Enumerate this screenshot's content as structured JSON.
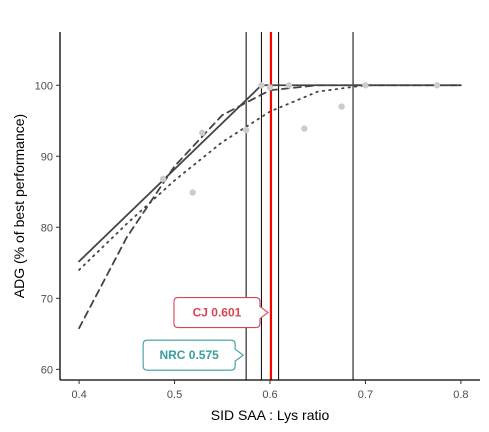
{
  "chart_data": {
    "type": "scatter",
    "title": "",
    "xlabel": "SID SAA : Lys ratio",
    "ylabel": "ADG (% of best performance)",
    "xlim": [
      0.38,
      0.82
    ],
    "ylim": [
      58.5,
      107.5
    ],
    "x_ticks": [
      0.4,
      0.5,
      0.6,
      0.7,
      0.8
    ],
    "y_ticks": [
      60,
      70,
      80,
      90,
      100
    ],
    "x_tick_labels": [
      "0.4",
      "0.5",
      "0.6",
      "0.7",
      "0.8"
    ],
    "y_tick_labels": [
      "60",
      "70",
      "80",
      "90",
      "100"
    ],
    "grid": false,
    "points": {
      "color": "#cccccc",
      "x": [
        0.488,
        0.519,
        0.529,
        0.575,
        0.591,
        0.6,
        0.62,
        0.636,
        0.675,
        0.7,
        0.775
      ],
      "y": [
        86.8,
        84.9,
        93.3,
        93.7,
        100.0,
        99.7,
        100.0,
        93.9,
        97.0,
        100.0,
        100.0
      ]
    },
    "broken_line_linear": {
      "style": "solid",
      "color": "#444444",
      "x": [
        0.4,
        0.591,
        0.8
      ],
      "y": [
        75.2,
        100.0,
        100.0
      ]
    },
    "broken_line_quadratic": {
      "style": "dashed",
      "color": "#444444",
      "x": [
        0.4,
        0.45,
        0.5,
        0.55,
        0.6,
        0.65,
        0.8
      ],
      "y": [
        65.8,
        78.6,
        88.6,
        95.8,
        99.3,
        100.0,
        100.0
      ]
    },
    "curvilinear_plateau": {
      "style": "dotted",
      "color": "#444444",
      "x": [
        0.4,
        0.45,
        0.5,
        0.55,
        0.6,
        0.65,
        0.7,
        0.8
      ],
      "y": [
        74.0,
        80.5,
        86.6,
        92.0,
        96.3,
        99.1,
        100.0,
        100.0
      ]
    },
    "reference_lines": [
      {
        "x": 0.575,
        "color": "#000000"
      },
      {
        "x": 0.591,
        "color": "#000000"
      },
      {
        "x": 0.609,
        "color": "#000000"
      },
      {
        "x": 0.687,
        "color": "#000000"
      },
      {
        "x": 0.601,
        "color": "#ff0000"
      }
    ],
    "annotations": [
      {
        "text": "CJ 0.601",
        "color": "#d94452",
        "x_target": 0.601,
        "y": 68.0
      },
      {
        "text": "NRC 0.575",
        "color": "#3a9e9e",
        "x_target": 0.575,
        "y": 62.0
      }
    ]
  }
}
